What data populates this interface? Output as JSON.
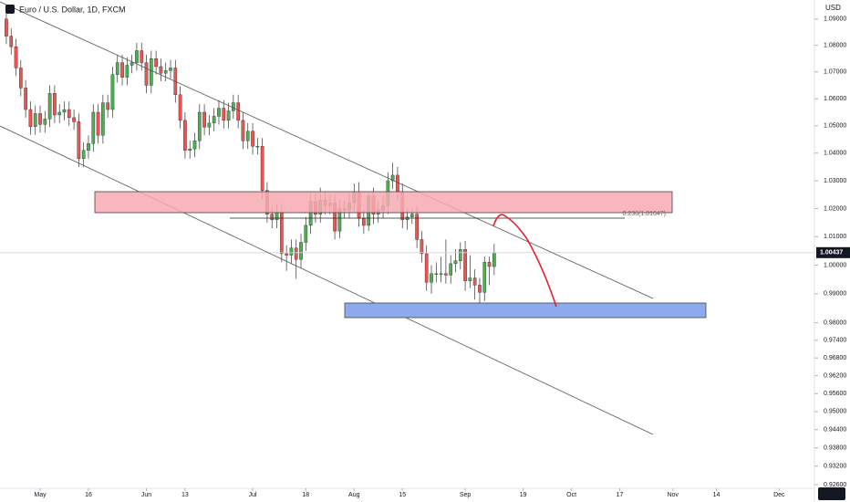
{
  "chart_data": {
    "type": "candlestick",
    "title": "Euro / U.S. Dollar, 1D, FXCM",
    "currency": "USD",
    "log_scale": true,
    "up_color": "#4caf50",
    "down_color": "#ef5350",
    "ylim": [
      0.9248,
      1.0973
    ],
    "yticks": [
      {
        "value": 1.09,
        "label": "1.09000"
      },
      {
        "value": 1.08,
        "label": "1.08000"
      },
      {
        "value": 1.07,
        "label": "1.07000"
      },
      {
        "value": 1.06,
        "label": "1.06000"
      },
      {
        "value": 1.05,
        "label": "1.05000"
      },
      {
        "value": 1.04,
        "label": "1.04000"
      },
      {
        "value": 1.03,
        "label": "1.03000"
      },
      {
        "value": 1.02,
        "label": "1.02000"
      },
      {
        "value": 1.01,
        "label": "1.01000"
      },
      {
        "value": 1.0,
        "label": "1.00000"
      },
      {
        "value": 0.99,
        "label": "0.99000"
      },
      {
        "value": 0.98,
        "label": "0.98000"
      },
      {
        "value": 0.974,
        "label": "0.97400"
      },
      {
        "value": 0.968,
        "label": "0.96800"
      },
      {
        "value": 0.962,
        "label": "0.96200"
      },
      {
        "value": 0.956,
        "label": "0.95600"
      },
      {
        "value": 0.95,
        "label": "0.95000"
      },
      {
        "value": 0.944,
        "label": "0.94400"
      },
      {
        "value": 0.938,
        "label": "0.93800"
      },
      {
        "value": 0.932,
        "label": "0.93200"
      },
      {
        "value": 0.926,
        "label": "0.92600"
      }
    ],
    "xlim": [
      -1.31,
      167.3
    ],
    "xticks": [
      {
        "value": 7,
        "label": "May"
      },
      {
        "value": 17,
        "label": "16"
      },
      {
        "value": 29,
        "label": "Jun"
      },
      {
        "value": 37,
        "label": "13"
      },
      {
        "value": 51,
        "label": "Jul"
      },
      {
        "value": 62,
        "label": "18"
      },
      {
        "value": 72,
        "label": "Aug"
      },
      {
        "value": 82,
        "label": "15"
      },
      {
        "value": 95,
        "label": "Sep"
      },
      {
        "value": 107,
        "label": "19"
      },
      {
        "value": 117,
        "label": "Oct"
      },
      {
        "value": 127,
        "label": "17"
      },
      {
        "value": 138,
        "label": "Nov"
      },
      {
        "value": 147,
        "label": "14"
      },
      {
        "value": 160,
        "label": "Dec"
      }
    ],
    "last_price": 1.00437,
    "fib_label": "0.236(1.01647)",
    "candles": {
      "open": [
        1.09,
        1.0835,
        1.0795,
        1.0715,
        1.064,
        1.056,
        1.0497,
        1.0545,
        1.0505,
        1.0525,
        1.062,
        1.054,
        1.055,
        1.056,
        1.053,
        1.0515,
        1.038,
        1.041,
        1.0435,
        1.055,
        1.0465,
        1.0585,
        1.056,
        1.069,
        1.0735,
        1.068,
        1.0725,
        1.0735,
        1.078,
        1.0735,
        1.065,
        1.075,
        1.072,
        1.0695,
        1.0705,
        1.0715,
        1.0615,
        1.052,
        1.041,
        1.0415,
        1.0445,
        1.055,
        1.0495,
        1.051,
        1.0535,
        1.0565,
        1.052,
        1.0555,
        1.0585,
        1.052,
        1.0445,
        1.048,
        1.0425,
        1.0425,
        1.0265,
        1.018,
        1.016,
        1.0185,
        1.004,
        1.0035,
        1.006,
        1.002,
        1.008,
        1.014,
        1.0225,
        1.018,
        1.023,
        1.021,
        1.022,
        1.012,
        1.02,
        1.0195,
        1.022,
        1.026,
        1.0165,
        1.014,
        1.0245,
        1.018,
        1.0195,
        1.021,
        1.03,
        1.032,
        1.026,
        1.016,
        1.017,
        1.018,
        1.009,
        1.004,
        0.994,
        0.997,
        0.997,
        0.997,
        0.9965,
        1.0005,
        1.0015,
        1.0055,
        0.9945,
        0.9955,
        0.993,
        0.9905,
        1.001,
        0.9995
      ],
      "high": [
        1.093,
        1.0865,
        1.0825,
        1.0745,
        1.067,
        1.059,
        1.0575,
        1.0575,
        1.0555,
        1.065,
        1.065,
        1.058,
        1.059,
        1.059,
        1.056,
        1.0545,
        1.044,
        1.0465,
        1.058,
        1.058,
        1.0615,
        1.0615,
        1.072,
        1.0765,
        1.0765,
        1.0755,
        1.0765,
        1.081,
        1.081,
        1.0765,
        1.078,
        1.078,
        1.075,
        1.0735,
        1.0745,
        1.0745,
        1.0645,
        1.055,
        1.0445,
        1.0475,
        1.058,
        1.058,
        1.054,
        1.0565,
        1.0595,
        1.0595,
        1.0585,
        1.0615,
        1.0615,
        1.055,
        1.051,
        1.051,
        1.0455,
        1.0455,
        1.0295,
        1.021,
        1.0215,
        1.0215,
        1.007,
        1.009,
        1.009,
        1.011,
        1.017,
        1.0255,
        1.0255,
        1.0275,
        1.026,
        1.025,
        1.025,
        1.023,
        1.023,
        1.0255,
        1.029,
        1.0295,
        1.0195,
        1.0255,
        1.0275,
        1.0225,
        1.0245,
        1.033,
        1.0365,
        1.035,
        1.029,
        1.02,
        1.02,
        1.021,
        1.012,
        1.007,
        1.0,
        1.001,
        1.003,
        1.009,
        1.0035,
        1.0055,
        1.008,
        1.0085,
        1.0035,
        0.9985,
        0.9955,
        1.003,
        1.003,
        1.0075
      ],
      "low": [
        1.0805,
        1.0765,
        1.0685,
        1.061,
        1.053,
        1.0467,
        1.0467,
        1.0475,
        1.0475,
        1.0495,
        1.051,
        1.051,
        1.052,
        1.05,
        1.0485,
        1.035,
        1.035,
        1.038,
        1.0405,
        1.0435,
        1.0435,
        1.053,
        1.053,
        1.066,
        1.065,
        1.065,
        1.0695,
        1.0705,
        1.0705,
        1.062,
        1.062,
        1.069,
        1.0665,
        1.0665,
        1.0675,
        1.0585,
        1.049,
        1.038,
        1.038,
        1.0385,
        1.0415,
        1.0465,
        1.0465,
        1.048,
        1.0505,
        1.049,
        1.049,
        1.0525,
        1.049,
        1.0415,
        1.0415,
        1.0395,
        1.0395,
        1.0235,
        1.015,
        1.013,
        1.013,
        1.001,
        0.998,
        1.0005,
        0.9952,
        0.999,
        1.005,
        1.011,
        1.015,
        1.015,
        1.018,
        1.018,
        1.009,
        1.0095,
        1.0165,
        1.0165,
        1.019,
        1.0135,
        1.011,
        1.012,
        1.0145,
        1.015,
        1.0165,
        1.018,
        1.027,
        1.023,
        1.013,
        1.0125,
        1.0145,
        1.006,
        1.001,
        0.991,
        0.99,
        0.994,
        0.994,
        0.9935,
        0.9935,
        0.9975,
        0.9985,
        0.991,
        0.992,
        0.988,
        0.9865,
        0.9875,
        0.993,
        0.9965
      ],
      "close": [
        1.0835,
        1.0795,
        1.0715,
        1.064,
        1.056,
        1.0497,
        1.0545,
        1.0505,
        1.0525,
        1.062,
        1.054,
        1.055,
        1.056,
        1.053,
        1.0515,
        1.038,
        1.041,
        1.0435,
        1.055,
        1.0465,
        1.0585,
        1.056,
        1.069,
        1.0735,
        1.068,
        1.0725,
        1.0735,
        1.078,
        1.0735,
        1.065,
        1.075,
        1.072,
        1.0695,
        1.0705,
        1.0715,
        1.0615,
        1.052,
        1.041,
        1.0415,
        1.0445,
        1.055,
        1.0495,
        1.051,
        1.0535,
        1.0565,
        1.052,
        1.0555,
        1.0585,
        1.052,
        1.0445,
        1.048,
        1.0425,
        1.0425,
        1.0265,
        1.018,
        1.016,
        1.0185,
        1.004,
        1.0035,
        1.006,
        1.002,
        1.008,
        1.014,
        1.0225,
        1.018,
        1.023,
        1.021,
        1.022,
        1.012,
        1.02,
        1.0195,
        1.022,
        1.026,
        1.0165,
        1.014,
        1.0245,
        1.018,
        1.0195,
        1.021,
        1.03,
        1.032,
        1.026,
        1.016,
        1.017,
        1.018,
        1.009,
        1.004,
        0.994,
        0.997,
        0.997,
        0.997,
        0.9965,
        1.0005,
        1.0015,
        1.0055,
        0.9945,
        0.9955,
        0.993,
        0.9905,
        1.001,
        0.9995,
        1.00437
      ]
    }
  }
}
